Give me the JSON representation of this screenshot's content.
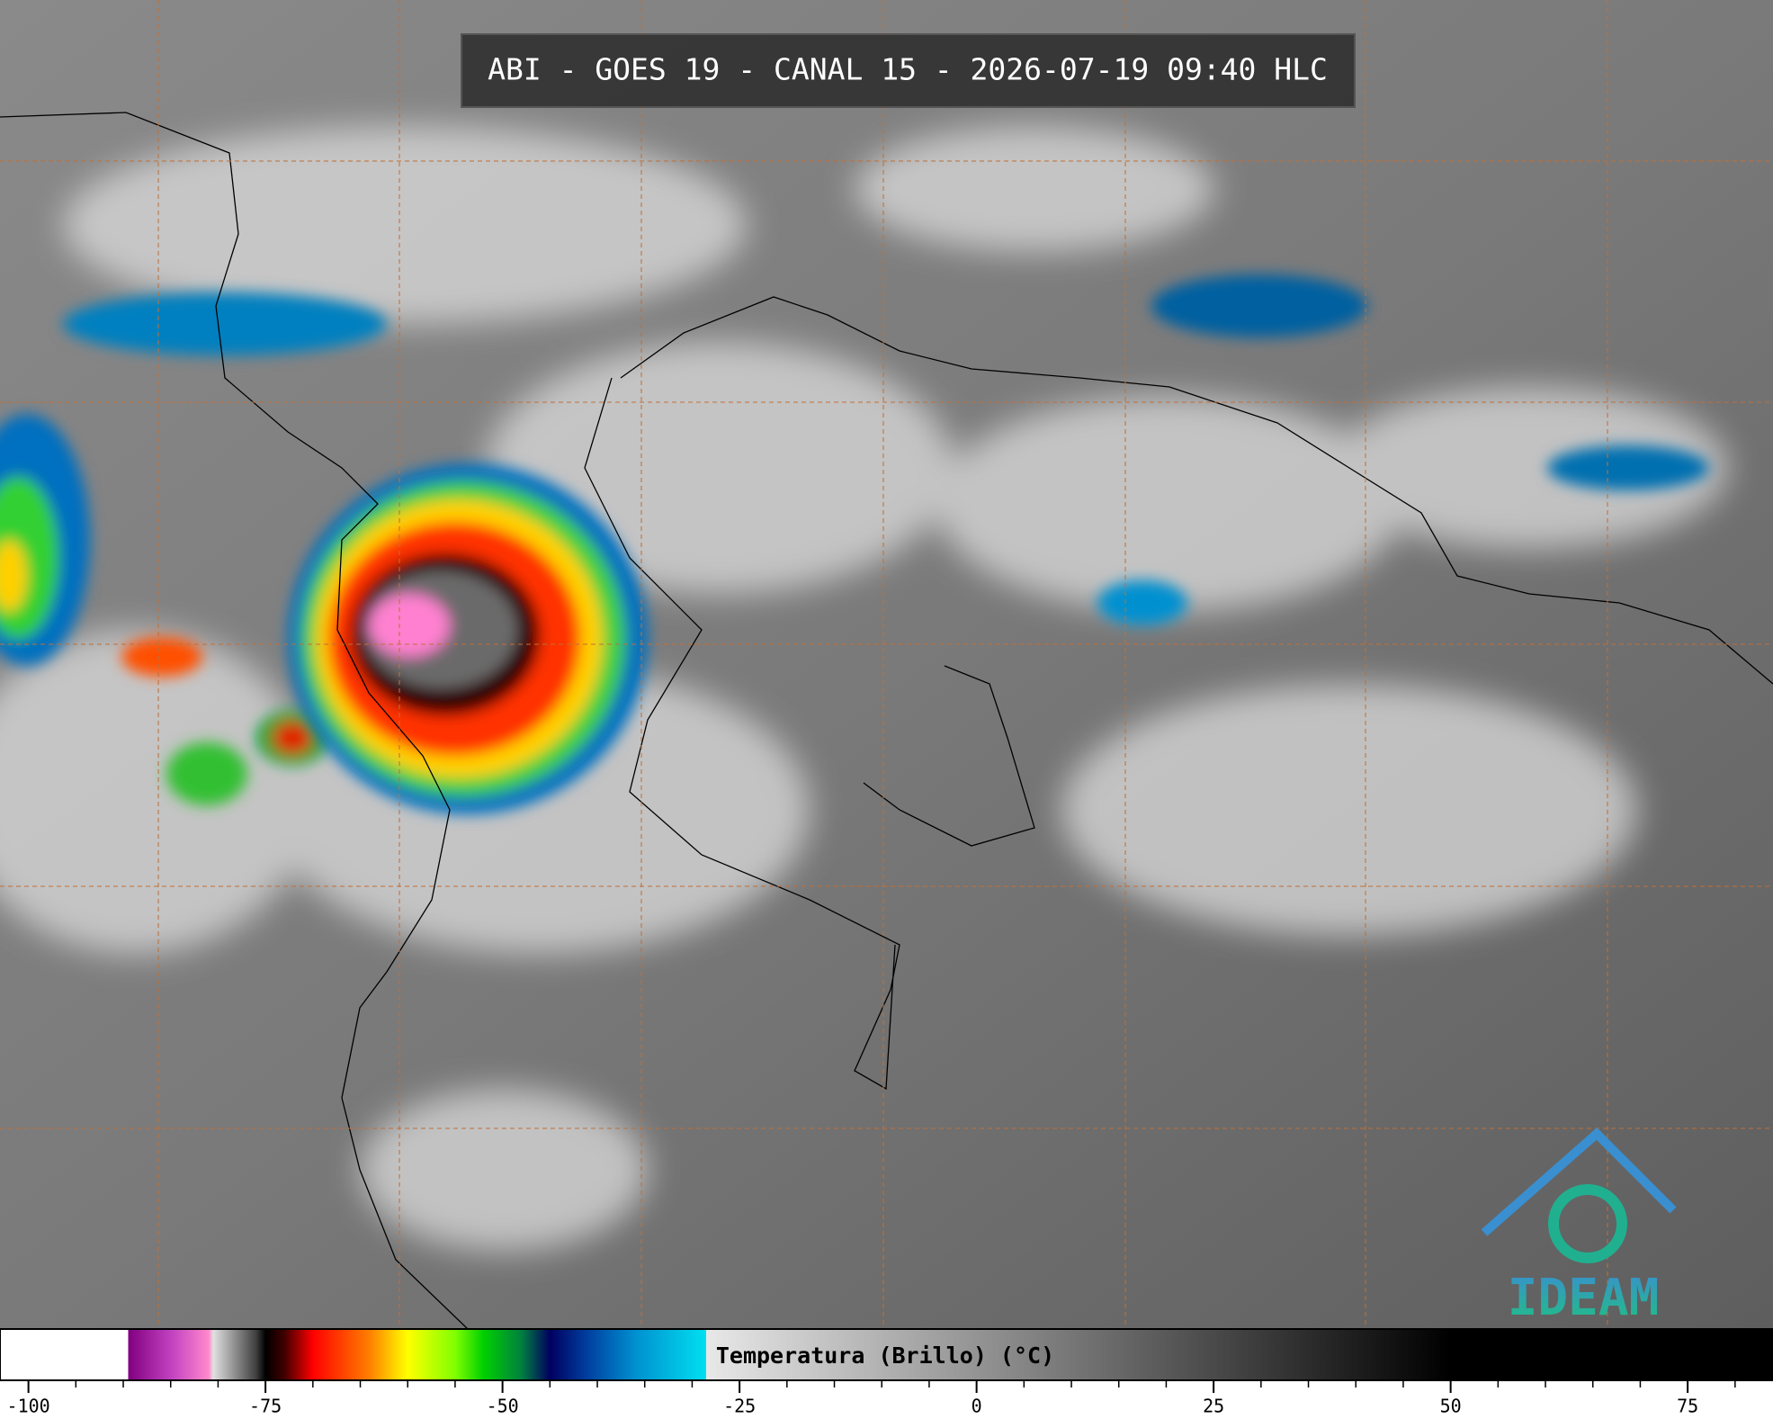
{
  "title": "ABI - GOES 19 - CANAL 15 - 2026-07-19 09:40 HLC",
  "logo": "IDEAM",
  "colorbar": {
    "label": "Temperatura (Brillo) (°C)",
    "xlim": [
      -103,
      84
    ],
    "xticks": [
      -100,
      -75,
      -50,
      -25,
      0,
      25,
      50,
      75
    ],
    "minor_ticks": [
      -95,
      -90,
      -85,
      -80,
      -70,
      -65,
      -60,
      -55,
      -45,
      -40,
      -35,
      -30,
      -20,
      -15,
      -10,
      -5,
      5,
      10,
      15,
      20,
      30,
      35,
      40,
      45,
      55,
      60,
      65,
      70,
      80
    ],
    "colorscale": [
      {
        "value": -103,
        "color": "#ffffff"
      },
      {
        "value": -89.5,
        "color": "#ffffff"
      },
      {
        "value": -89.5,
        "color": "#800080"
      },
      {
        "value": -85,
        "color": "#c040c0"
      },
      {
        "value": -81,
        "color": "#ff88cc"
      },
      {
        "value": -80.5,
        "color": "#e0e0e0"
      },
      {
        "value": -76,
        "color": "#404040"
      },
      {
        "value": -75,
        "color": "#000000"
      },
      {
        "value": -73,
        "color": "#400000"
      },
      {
        "value": -70,
        "color": "#ff0000"
      },
      {
        "value": -64,
        "color": "#ff8000"
      },
      {
        "value": -60,
        "color": "#ffff00"
      },
      {
        "value": -55,
        "color": "#80ff00"
      },
      {
        "value": -52,
        "color": "#00d000"
      },
      {
        "value": -48,
        "color": "#008040"
      },
      {
        "value": -45,
        "color": "#000060"
      },
      {
        "value": -41,
        "color": "#0040a0"
      },
      {
        "value": -36,
        "color": "#0090d0"
      },
      {
        "value": -28.5,
        "color": "#00e0f0"
      },
      {
        "value": -28.5,
        "color": "#e8e8e8"
      },
      {
        "value": 50,
        "color": "#000000"
      },
      {
        "value": 84,
        "color": "#000000"
      }
    ]
  }
}
